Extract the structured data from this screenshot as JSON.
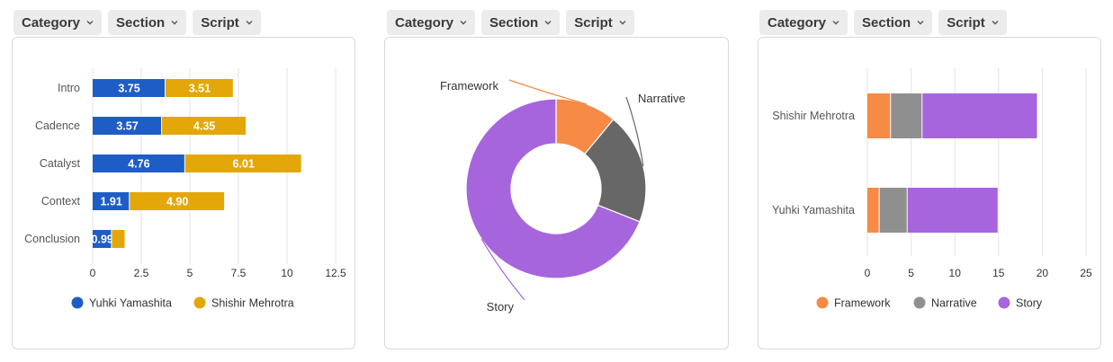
{
  "filters": [
    {
      "category": "Category",
      "section": "Section",
      "script": "Script"
    },
    {
      "category": "Category",
      "section": "Section",
      "script": "Script"
    },
    {
      "category": "Category",
      "section": "Section",
      "script": "Script"
    }
  ],
  "colors": {
    "yuhki": "#1f5dc6",
    "shishir": "#e3a70a",
    "framework": "#f78a45",
    "narrative": "#676767",
    "narrative_legend": "#8f8f8f",
    "story": "#a765dd"
  },
  "chart_data": [
    {
      "type": "bar",
      "orientation": "horizontal",
      "stacked": true,
      "categories": [
        "Intro",
        "Cadence",
        "Catalyst",
        "Context",
        "Conclusion"
      ],
      "series": [
        {
          "name": "Yuhki Yamashita",
          "values": [
            3.75,
            3.57,
            4.76,
            1.91,
            0.99
          ]
        },
        {
          "name": "Shishir Mehrotra",
          "values": [
            3.51,
            4.35,
            6.01,
            4.9,
            0.7
          ]
        }
      ],
      "data_labels": [
        [
          "3.75",
          "3.57",
          "4.76",
          "1.91",
          "0.99"
        ],
        [
          "3.51",
          "4.35",
          "6.01",
          "4.90",
          ""
        ]
      ],
      "xlim": [
        0,
        12.5
      ],
      "xticks": [
        "0",
        "2.5",
        "5",
        "7.5",
        "10",
        "12.5"
      ],
      "grid": true,
      "legend": "bottom"
    },
    {
      "type": "pie",
      "donut": true,
      "labels": [
        "Framework",
        "Narrative",
        "Story"
      ],
      "values": [
        11,
        20,
        69
      ],
      "legend": "none"
    },
    {
      "type": "bar",
      "orientation": "horizontal",
      "stacked": true,
      "categories": [
        "Shishir Mehrotra",
        "Yuhki Yamashita"
      ],
      "series": [
        {
          "name": "Framework",
          "values": [
            2.7,
            1.4
          ]
        },
        {
          "name": "Narrative",
          "values": [
            3.6,
            3.2
          ]
        },
        {
          "name": "Story",
          "values": [
            13.2,
            10.4
          ]
        }
      ],
      "xlim": [
        0,
        25
      ],
      "xticks": [
        "0",
        "5",
        "10",
        "15",
        "20",
        "25"
      ],
      "grid": true,
      "legend": "bottom"
    }
  ]
}
